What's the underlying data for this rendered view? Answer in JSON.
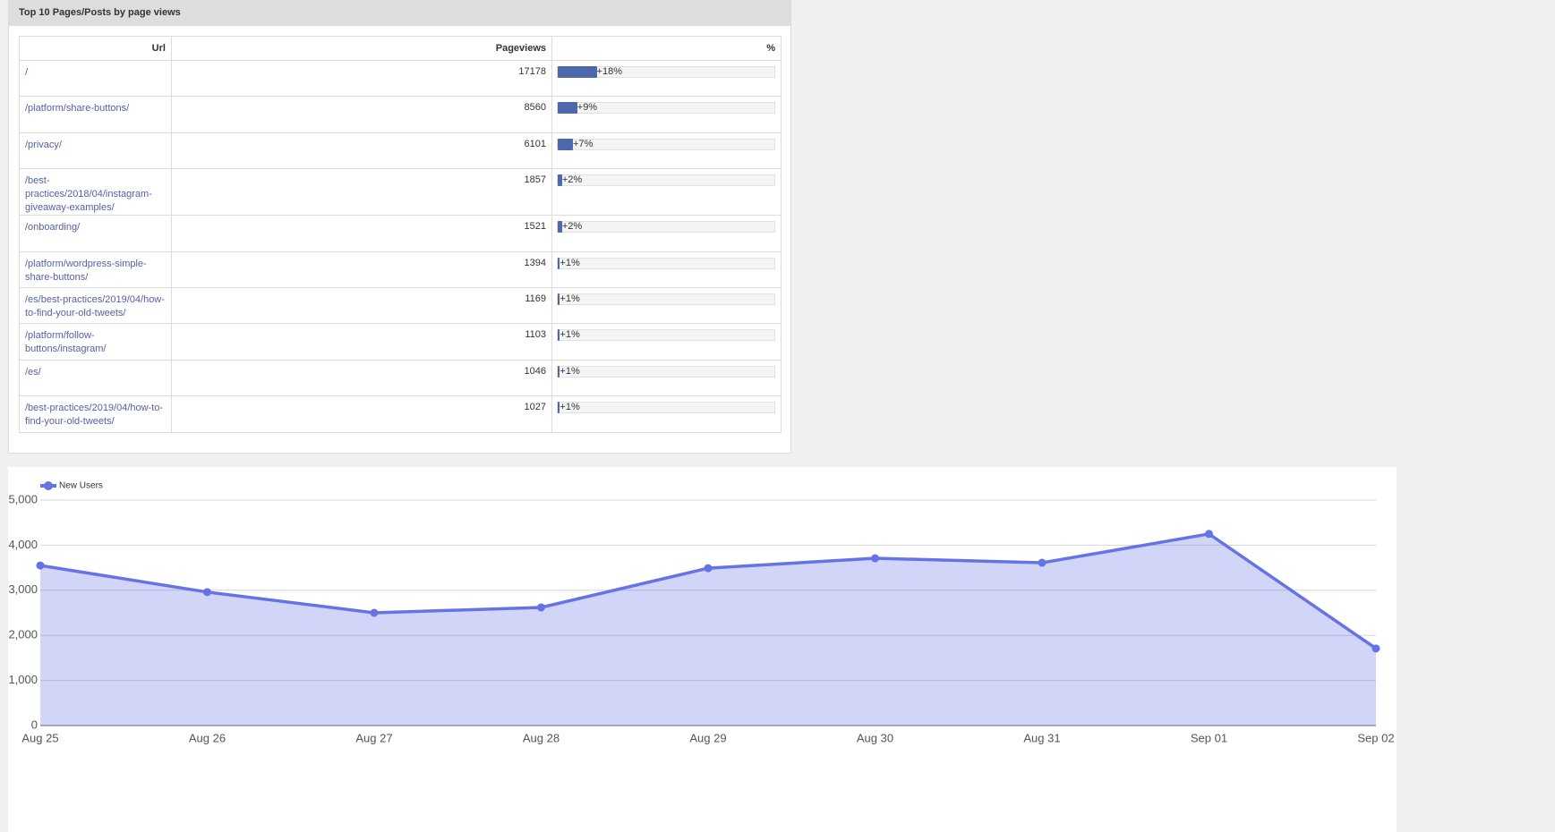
{
  "panel": {
    "title": "Top 10 Pages/Posts by page views",
    "table": {
      "columns": [
        "Url",
        "Pageviews",
        "%"
      ],
      "rows": [
        {
          "url": "/",
          "pageviews": 17178,
          "percent": 18,
          "percent_label": "+18%"
        },
        {
          "url": "/platform/share-buttons/",
          "pageviews": 8560,
          "percent": 9,
          "percent_label": "+9%"
        },
        {
          "url": "/privacy/",
          "pageviews": 6101,
          "percent": 7,
          "percent_label": "+7%"
        },
        {
          "url": "/best-practices/2018/04/instagram-giveaway-examples/",
          "pageviews": 1857,
          "percent": 2,
          "percent_label": "+2%"
        },
        {
          "url": "/onboarding/",
          "pageviews": 1521,
          "percent": 2,
          "percent_label": "+2%"
        },
        {
          "url": "/platform/wordpress-simple-share-buttons/",
          "pageviews": 1394,
          "percent": 1,
          "percent_label": "+1%"
        },
        {
          "url": "/es/best-practices/2019/04/how-to-find-your-old-tweets/",
          "pageviews": 1169,
          "percent": 1,
          "percent_label": "+1%"
        },
        {
          "url": "/platform/follow-buttons/instagram/",
          "pageviews": 1103,
          "percent": 1,
          "percent_label": "+1%"
        },
        {
          "url": "/es/",
          "pageviews": 1046,
          "percent": 1,
          "percent_label": "+1%"
        },
        {
          "url": "/best-practices/2019/04/how-to-find-your-old-tweets/",
          "pageviews": 1027,
          "percent": 1,
          "percent_label": "+1%"
        }
      ]
    }
  },
  "chart_data": {
    "type": "area",
    "categories": [
      "Aug 25",
      "Aug 26",
      "Aug 27",
      "Aug 28",
      "Aug 29",
      "Aug 30",
      "Aug 31",
      "Sep 01",
      "Sep 02"
    ],
    "series": [
      {
        "name": "New Users",
        "color": "#6673e6",
        "values": [
          3550,
          2960,
          2500,
          2620,
          3490,
          3710,
          3610,
          4250,
          1710
        ]
      }
    ],
    "ylim": [
      0,
      5000
    ],
    "yticks": [
      0,
      {
        "value": 1000,
        "label": "1,000"
      },
      {
        "value": 2000,
        "label": "2,000"
      },
      {
        "value": 3000,
        "label": "3,000"
      },
      {
        "value": 4000,
        "label": "4,000"
      },
      {
        "value": 5000,
        "label": "5,000"
      }
    ],
    "grid": true
  }
}
